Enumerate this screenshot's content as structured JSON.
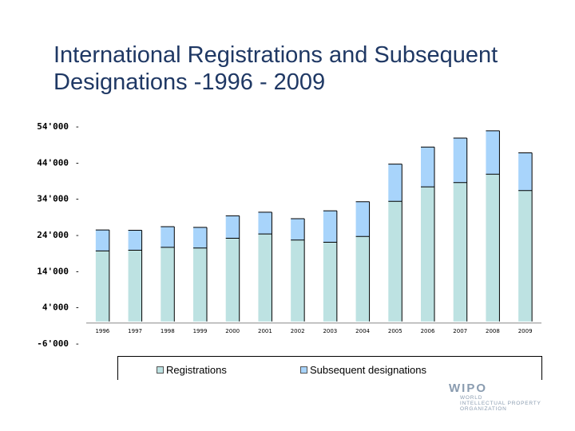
{
  "header": {
    "title_line1": "International Registrations and Subsequent",
    "title_line2": "Designations -1996 - 2009"
  },
  "legend": {
    "registrations_label": "Registrations",
    "subsequent_label": "Subsequent designations"
  },
  "logo": {
    "mark": "WIPO",
    "line1": "WORLD",
    "line2": "INTELLECTUAL PROPERTY",
    "line3": "ORGANIZATION"
  },
  "colors": {
    "registrations": "#bde2e2",
    "subsequent": "#a8d4fb",
    "title": "#1f3864"
  },
  "chart_data": {
    "type": "bar",
    "stacked": true,
    "categories": [
      "1996",
      "1997",
      "1998",
      "1999",
      "2000",
      "2001",
      "2002",
      "2003",
      "2004",
      "2005",
      "2006",
      "2007",
      "2008",
      "2009"
    ],
    "series": [
      {
        "name": "Registrations",
        "values": [
          19500,
          19700,
          20500,
          20300,
          23000,
          24200,
          22500,
          21900,
          23500,
          33200,
          37200,
          38400,
          40700,
          36200
        ]
      },
      {
        "name": "Subsequent designations",
        "values": [
          5800,
          5500,
          5700,
          5700,
          6200,
          6000,
          5900,
          8700,
          9600,
          10300,
          11000,
          12300,
          12000,
          10400
        ]
      }
    ],
    "yticks": [
      "54'000",
      "44'000",
      "34'000",
      "24'000",
      "14'000",
      "4'000",
      "-6'000"
    ],
    "ytick_values": [
      54000,
      44000,
      34000,
      24000,
      14000,
      4000,
      -6000
    ],
    "ylim": [
      -6000,
      54000
    ],
    "legend_position": "bottom"
  }
}
